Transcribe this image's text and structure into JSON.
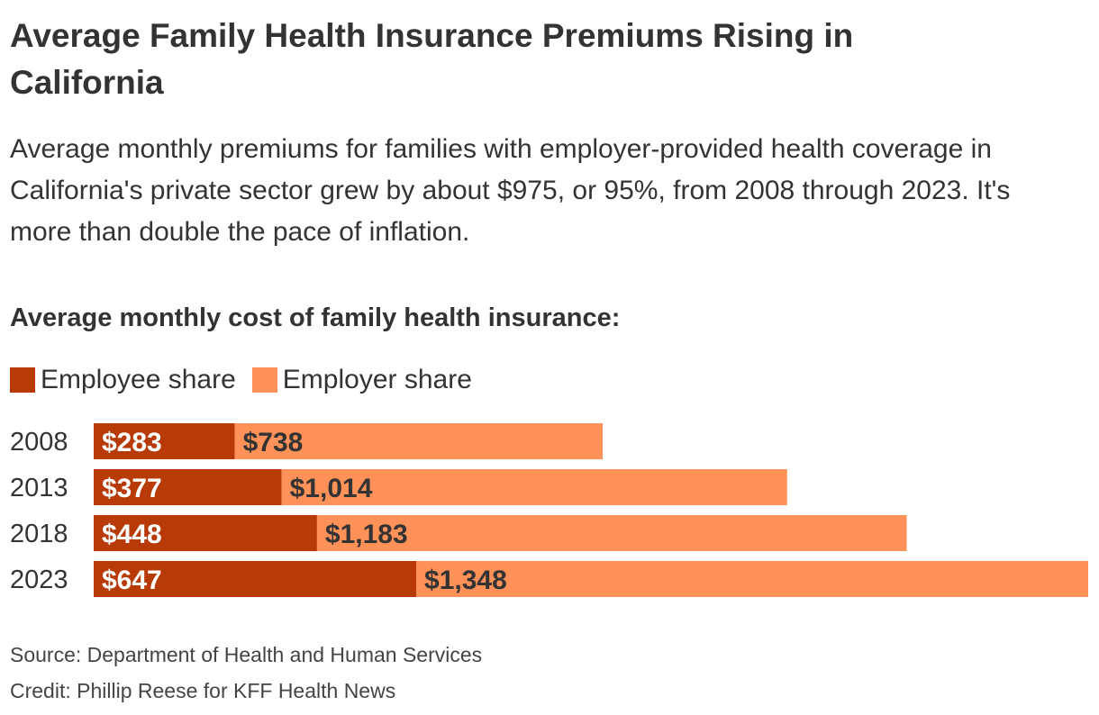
{
  "title": "Average Family Health Insurance Premiums Rising in California",
  "subtitle": "Average monthly premiums for families with employer-provided health coverage in California's private sector grew by about $975, or 95%, from 2008 through 2023. It's more than double the pace of inflation.",
  "chart_heading": "Average monthly cost of family health insurance:",
  "legend": {
    "employee": "Employee share",
    "employer": "Employer share"
  },
  "colors": {
    "employee": "#B83A06",
    "employer": "#FF9159"
  },
  "chart_data": {
    "type": "bar",
    "orientation": "horizontal",
    "stacked": true,
    "categories": [
      "2008",
      "2013",
      "2018",
      "2023"
    ],
    "series": [
      {
        "name": "Employee share",
        "values": [
          283,
          377,
          448,
          647
        ],
        "labels": [
          "$283",
          "$377",
          "$448",
          "$647"
        ]
      },
      {
        "name": "Employer share",
        "values": [
          738,
          1014,
          1183,
          1348
        ],
        "labels": [
          "$738",
          "$1,014",
          "$1,183",
          "$1,348"
        ]
      }
    ],
    "xlim": [
      0,
      1995
    ],
    "title": "Average monthly cost of family health insurance:",
    "xlabel": "",
    "ylabel": "",
    "grid": false
  },
  "source": "Source: Department of Health and Human Services",
  "credit": "Credit: Phillip Reese for KFF Health News"
}
